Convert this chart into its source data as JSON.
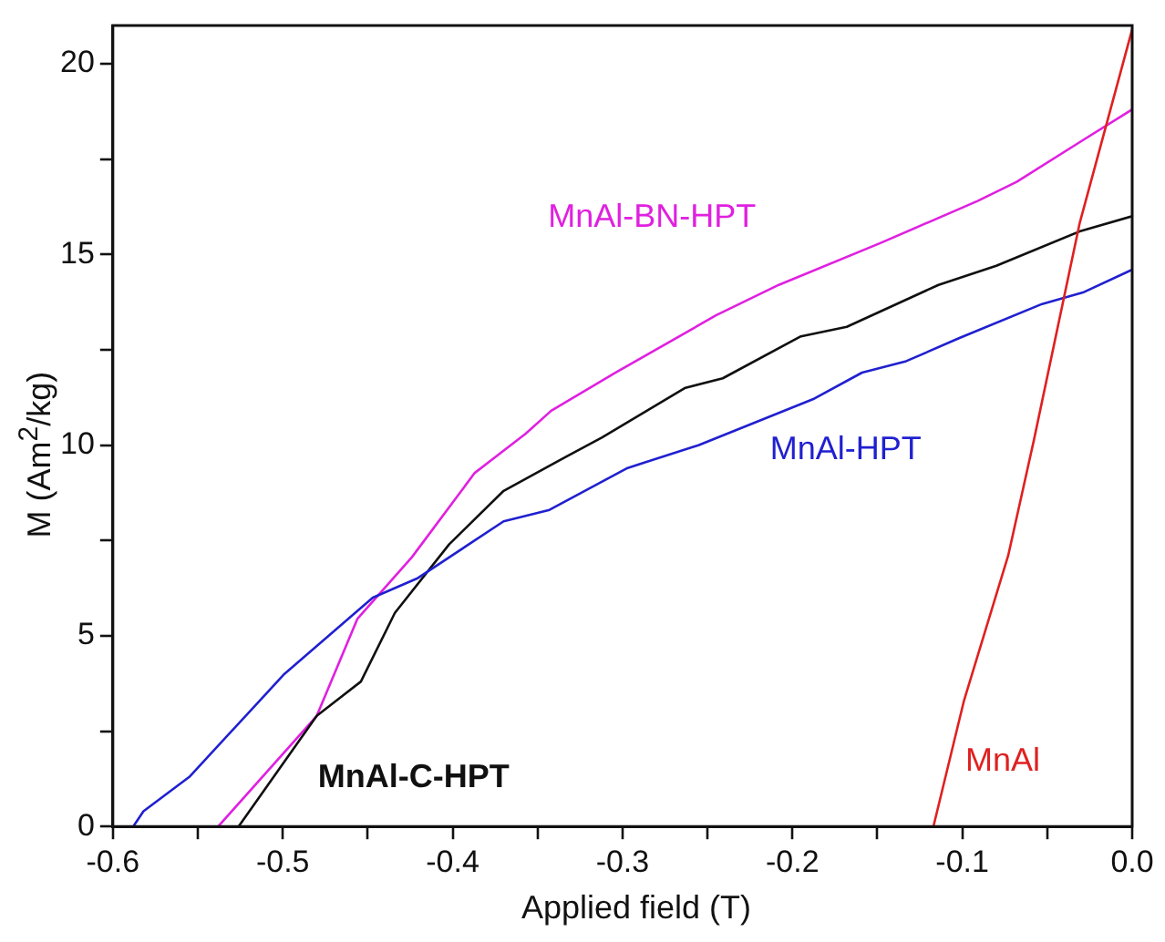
{
  "chart_data": {
    "type": "line",
    "xlabel": "Applied field (T)",
    "ylabel": "M (Am$^{2}$/kg)",
    "xlim": [
      -0.6,
      0.0
    ],
    "xticks": [
      {
        "value": -0.6,
        "label": "-0.6"
      },
      {
        "value": -0.55,
        "label": null
      },
      {
        "value": -0.5,
        "label": "-0.5"
      },
      {
        "value": -0.45,
        "label": null
      },
      {
        "value": -0.4,
        "label": "-0.4"
      },
      {
        "value": -0.35,
        "label": null
      },
      {
        "value": -0.3,
        "label": "-0.3"
      },
      {
        "value": -0.25,
        "label": null
      },
      {
        "value": -0.2,
        "label": "-0.2"
      },
      {
        "value": -0.15,
        "label": null
      },
      {
        "value": -0.1,
        "label": "-0.1"
      },
      {
        "value": -0.05,
        "label": null
      },
      {
        "value": 0,
        "label": "0.0"
      }
    ],
    "ylim": [
      0,
      21
    ],
    "yticks": [
      0,
      {
        "value": 2.5,
        "label": null
      },
      5,
      {
        "value": 7.5,
        "label": null
      },
      10,
      {
        "value": 12.5,
        "label": null
      },
      15,
      {
        "value": 17.5,
        "label": null
      },
      20
    ],
    "grid": false,
    "legend": false,
    "marker": "none",
    "line_style": "solid",
    "series": [
      {
        "name": "MnAl",
        "color": "#e02020",
        "x": [
          -0.117,
          -0.099,
          -0.073,
          -0.058,
          -0.031,
          0
        ],
        "values": [
          0,
          3.3,
          7.1,
          10.1,
          15.8,
          20.9
        ]
      },
      {
        "name": "MnAl-HPT",
        "color": "#2020d0",
        "x": [
          -0.588,
          -0.582,
          -0.555,
          -0.499,
          -0.447,
          -0.421,
          -0.37,
          -0.343,
          -0.297,
          -0.255,
          -0.188,
          -0.159,
          -0.133,
          -0.102,
          -0.053,
          -0.029,
          0
        ],
        "values": [
          0,
          0.4,
          1.3,
          4.0,
          6.0,
          6.5,
          8.0,
          8.3,
          9.4,
          10.0,
          11.2,
          11.9,
          12.2,
          12.8,
          13.7,
          14.0,
          14.6
        ]
      },
      {
        "name": "MnAl-C-HPT",
        "color": "#101010",
        "x": [
          -0.526,
          -0.48,
          -0.454,
          -0.434,
          -0.402,
          -0.37,
          -0.333,
          -0.312,
          -0.263,
          -0.241,
          -0.195,
          -0.168,
          -0.114,
          -0.08,
          -0.031,
          0
        ],
        "values": [
          0,
          2.9,
          3.8,
          5.6,
          7.4,
          8.8,
          9.7,
          10.2,
          11.5,
          11.75,
          12.85,
          13.1,
          14.2,
          14.7,
          15.6,
          16.0
        ]
      },
      {
        "name": "MnAl-BN-HPT",
        "color": "#e020e0",
        "x": [
          -0.538,
          -0.48,
          -0.456,
          -0.424,
          -0.387,
          -0.357,
          -0.342,
          -0.304,
          -0.245,
          -0.208,
          -0.148,
          -0.091,
          -0.068,
          -0.027,
          0
        ],
        "values": [
          0,
          2.9,
          5.45,
          7.06,
          9.27,
          10.3,
          10.9,
          11.9,
          13.4,
          14.2,
          15.3,
          16.4,
          16.9,
          18.05,
          18.8
        ]
      }
    ]
  }
}
